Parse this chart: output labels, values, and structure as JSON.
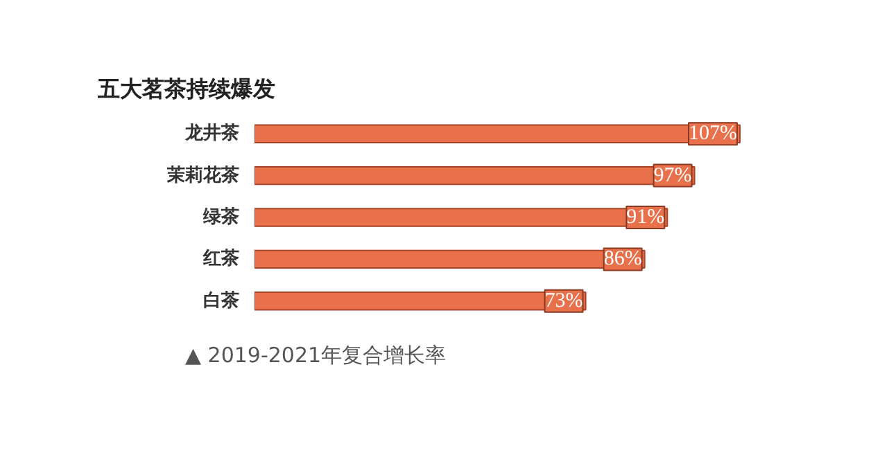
{
  "chart_data": {
    "type": "bar",
    "orientation": "horizontal",
    "title": "五大茗茶持续爆发",
    "categories": [
      "龙井茶",
      "茉莉花茶",
      "绿茶",
      "红茶",
      "白茶"
    ],
    "values": [
      107,
      97,
      91,
      86,
      73
    ],
    "value_labels": [
      "107%",
      "97%",
      "91%",
      "86%",
      "73%"
    ],
    "color": "#e8704a",
    "grid": false,
    "annotations": [
      "▲ 2019-2021年复合增长率"
    ]
  }
}
